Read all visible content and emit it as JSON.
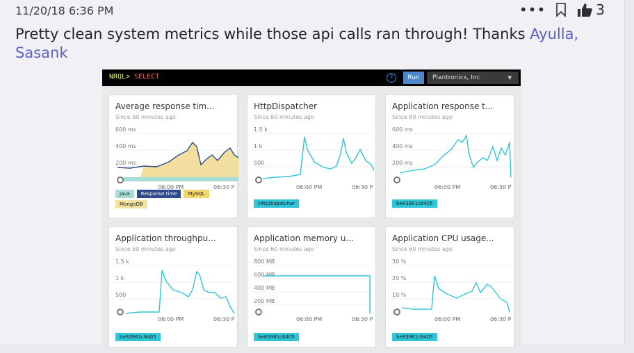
{
  "message": {
    "timestamp": "11/20/18 6:36 PM",
    "more_icon": "more-icon",
    "bookmark_icon": "bookmark-icon",
    "like_icon": "thumbs-up-icon",
    "like_count": "3",
    "text": "Pretty clean system metrics while those api calls ran through! Thanks ",
    "mention": "Ayulla, Sasank"
  },
  "dashboard": {
    "prompt": "NRQL>",
    "query": "SELECT",
    "help_icon": "help-icon",
    "run_label": "Run",
    "account": "Plantronics, Inc",
    "account_caret_icon": "caret-down-icon",
    "subtitle": "Since 60 minutes ago",
    "x_ticks": [
      "06:00 PM",
      "06:30 P"
    ],
    "charts": [
      {
        "title": "Average response tim...",
        "y_ticks": [
          "600 ms",
          "400 ms",
          "200 ms"
        ],
        "tags": [
          {
            "label": "Java",
            "color": "#a8dcd9"
          },
          {
            "label": "Response time",
            "color": "#2c4a8c",
            "text": "#ffffff"
          },
          {
            "label": "MySQL",
            "color": "#f2d76a"
          },
          {
            "label": "MongoDB",
            "color": "#f4e2a0"
          }
        ]
      },
      {
        "title": "HttpDispatcher",
        "y_ticks": [
          "1.5 k",
          "1 k",
          "500"
        ],
        "tags": [
          {
            "label": "HttpDispatcher",
            "color": "#2ec6d8"
          }
        ]
      },
      {
        "title": "Application response t...",
        "y_ticks": [
          "600 ms",
          "400 ms",
          "200 ms"
        ],
        "tags": [
          {
            "label": "be83961c8405",
            "color": "#2ec6d8"
          }
        ]
      },
      {
        "title": "Application throughpu...",
        "y_ticks": [
          "1.5 k",
          "1 k",
          "500"
        ],
        "tags": [
          {
            "label": "be83961c8405",
            "color": "#2ec6d8"
          }
        ]
      },
      {
        "title": "Application memory u...",
        "y_ticks": [
          "800 MB",
          "600 MB",
          "400 MB",
          "200 MB"
        ],
        "tags": [
          {
            "label": "be83961c8405",
            "color": "#2ec6d8"
          }
        ]
      },
      {
        "title": "Application CPU usage...",
        "y_ticks": [
          "30 %",
          "20 %",
          "10 %"
        ],
        "tags": [
          {
            "label": "be83961c8405",
            "color": "#2ec6d8"
          }
        ]
      }
    ]
  },
  "colors": {
    "accent_teal": "#2ec6d8",
    "mention": "#5b5fc7",
    "area_fill": "#f2dfa0",
    "navy": "#2c4a8c"
  }
}
